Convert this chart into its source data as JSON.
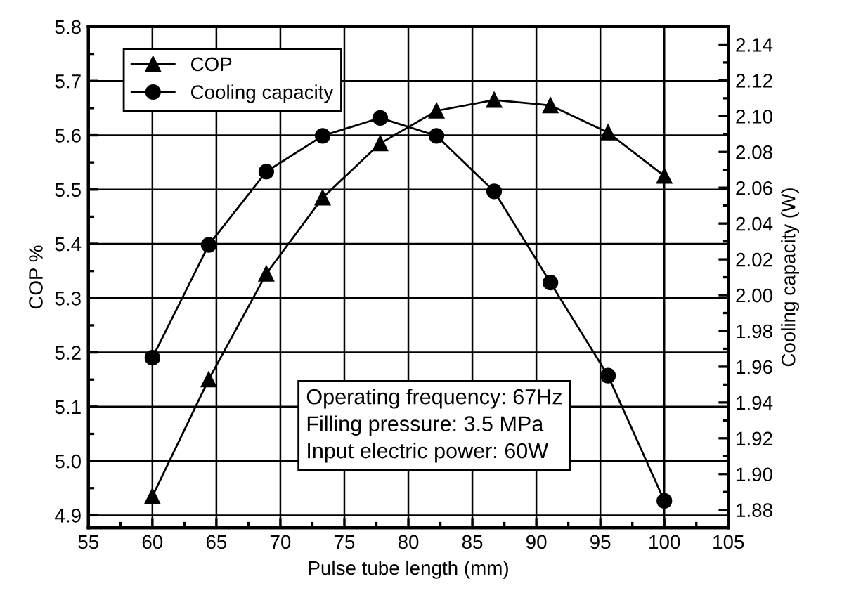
{
  "chart_data": {
    "type": "line",
    "xlabel": "Pulse tube length (mm)",
    "ylabel": "COP %",
    "y2label": "Cooling capacity (W)",
    "x": [
      60,
      64.4,
      68.9,
      73.3,
      77.8,
      82.2,
      86.7,
      91.1,
      95.6,
      100
    ],
    "series": [
      {
        "name": "COP",
        "color": "#000000",
        "marker": "triangle",
        "values": [
          4.935,
          5.15,
          5.345,
          5.485,
          5.585,
          5.645,
          5.665,
          5.655,
          5.605,
          5.525
        ]
      },
      {
        "name": "Cooling capacity",
        "color": "#000000",
        "marker": "circle",
        "axis": "y2",
        "values": [
          1.965,
          2.028,
          2.069,
          2.089,
          2.099,
          2.089,
          2.058,
          2.007,
          1.955,
          1.885
        ]
      }
    ],
    "xlim": [
      55,
      105
    ],
    "xticks": [
      55,
      60,
      65,
      70,
      75,
      80,
      85,
      90,
      95,
      100,
      105
    ],
    "ylim": [
      4.877,
      5.8
    ],
    "yticks": [
      {
        "value": 4.9,
        "label": "4.9"
      },
      {
        "value": 5.0,
        "label": "5.0"
      },
      {
        "value": 5.1,
        "label": "5.1"
      },
      {
        "value": 5.2,
        "label": "5.2"
      },
      {
        "value": 5.3,
        "label": "5.3"
      },
      {
        "value": 5.4,
        "label": "5.4"
      },
      {
        "value": 5.5,
        "label": "5.5"
      },
      {
        "value": 5.6,
        "label": "5.6"
      },
      {
        "value": 5.7,
        "label": "5.7"
      },
      {
        "value": 5.8,
        "label": "5.8"
      }
    ],
    "y2lim": [
      1.87,
      2.15
    ],
    "y2ticks": [
      {
        "value": 1.88,
        "label": "1.88"
      },
      {
        "value": 1.9,
        "label": "1.90"
      },
      {
        "value": 1.92,
        "label": "1.92"
      },
      {
        "value": 1.94,
        "label": "1.94"
      },
      {
        "value": 1.96,
        "label": "1.96"
      },
      {
        "value": 1.98,
        "label": "1.98"
      },
      {
        "value": 2.0,
        "label": "2.00"
      },
      {
        "value": 2.02,
        "label": "2.02"
      },
      {
        "value": 2.04,
        "label": "2.04"
      },
      {
        "value": 2.06,
        "label": "2.06"
      },
      {
        "value": 2.08,
        "label": "2.08"
      },
      {
        "value": 2.1,
        "label": "2.10"
      },
      {
        "value": 2.12,
        "label": "2.12"
      },
      {
        "value": 2.14,
        "label": "2.14"
      }
    ],
    "grid": true,
    "legend": "top left",
    "line_style": "solid",
    "annotations": [
      "Operating frequency: 67Hz\nFilling pressure: 3.5 MPa\nInput electric power: 60W"
    ]
  }
}
